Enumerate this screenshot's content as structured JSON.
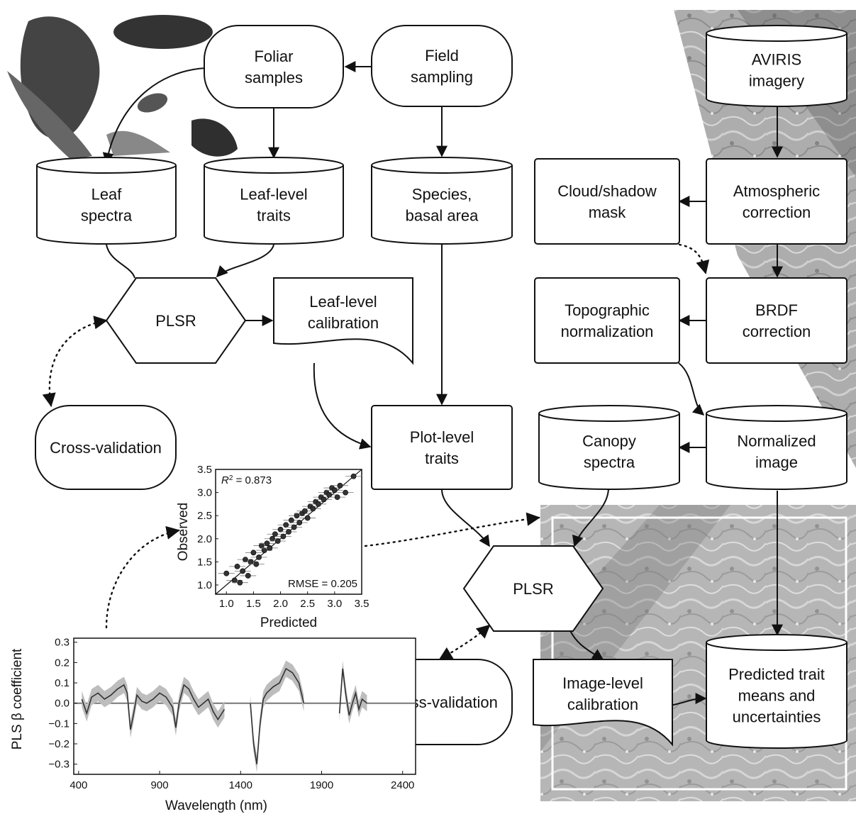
{
  "nodes": {
    "foliar_samples": [
      "Foliar",
      "samples"
    ],
    "field_sampling": [
      "Field",
      "sampling"
    ],
    "aviris": [
      "AVIRIS",
      "imagery"
    ],
    "leaf_spectra": [
      "Leaf",
      "spectra"
    ],
    "leaf_traits": [
      "Leaf-level",
      "traits"
    ],
    "species": [
      "Species,",
      "basal area"
    ],
    "cloud_mask": [
      "Cloud/shadow",
      "mask"
    ],
    "atmos": [
      "Atmospheric",
      "correction"
    ],
    "plsr1": [
      "PLSR"
    ],
    "leaf_calib": [
      "Leaf-level",
      "calibration"
    ],
    "topo": [
      "Topographic",
      "normalization"
    ],
    "brdf": [
      "BRDF",
      "correction"
    ],
    "cv1": [
      "Cross-validation"
    ],
    "plot_traits": [
      "Plot-level",
      "traits"
    ],
    "canopy": [
      "Canopy",
      "spectra"
    ],
    "norm_image": [
      "Normalized",
      "image"
    ],
    "plsr2": [
      "PLSR"
    ],
    "cv2": [
      "Cross-validation"
    ],
    "image_calib": [
      "Image-level",
      "calibration"
    ],
    "predicted": [
      "Predicted trait",
      "means and",
      "uncertainties"
    ]
  },
  "scatter_inset": {
    "xlabel": "Predicted",
    "ylabel": "Observed",
    "r2_label": "R",
    "r2_sup": "2",
    "r2_value": " = 0.873",
    "rmse_text": "RMSE = 0.205",
    "x_ticks": [
      "1.0",
      "1.5",
      "2.0",
      "2.5",
      "3.0",
      "3.5"
    ],
    "y_ticks": [
      "1.0",
      "1.5",
      "2.0",
      "2.5",
      "3.0",
      "3.5"
    ]
  },
  "coef_inset": {
    "xlabel": "Wavelength (nm)",
    "ylabel": "PLS β coefficient",
    "x_ticks": [
      "400",
      "900",
      "1400",
      "1900",
      "2400"
    ],
    "y_ticks": [
      "0.3",
      "0.2",
      "0.1",
      "0.0",
      "−0.1",
      "−0.2",
      "−0.3"
    ]
  },
  "chart_data": [
    {
      "type": "scatter",
      "xlabel": "Predicted",
      "ylabel": "Observed",
      "xlim": [
        0.8,
        3.5
      ],
      "ylim": [
        0.8,
        3.5
      ],
      "annotations": [
        "R² = 0.873",
        "RMSE = 0.205"
      ],
      "fit_line": [
        [
          0.8,
          0.8
        ],
        [
          3.5,
          3.5
        ]
      ],
      "x": [
        1.0,
        1.15,
        1.2,
        1.25,
        1.3,
        1.35,
        1.4,
        1.45,
        1.5,
        1.55,
        1.6,
        1.65,
        1.7,
        1.75,
        1.8,
        1.85,
        1.9,
        1.95,
        2.0,
        2.05,
        2.1,
        2.15,
        2.2,
        2.25,
        2.3,
        2.35,
        2.4,
        2.45,
        2.5,
        2.55,
        2.6,
        2.65,
        2.7,
        2.75,
        2.8,
        2.85,
        2.9,
        2.95,
        3.0,
        3.05,
        3.1,
        3.2,
        3.35
      ],
      "y": [
        1.25,
        1.1,
        1.4,
        1.05,
        1.3,
        1.55,
        1.2,
        1.5,
        1.7,
        1.45,
        1.6,
        1.85,
        1.75,
        1.9,
        1.8,
        2.0,
        2.1,
        1.95,
        2.2,
        2.05,
        2.3,
        2.15,
        2.4,
        2.25,
        2.5,
        2.35,
        2.55,
        2.6,
        2.45,
        2.7,
        2.65,
        2.8,
        2.75,
        2.9,
        2.85,
        3.0,
        2.95,
        3.1,
        3.05,
        2.9,
        3.15,
        3.0,
        3.35
      ]
    },
    {
      "type": "line",
      "xlabel": "Wavelength (nm)",
      "ylabel": "PLS β coefficient",
      "xlim": [
        370,
        2480
      ],
      "ylim": [
        -0.35,
        0.32
      ],
      "segments": [
        {
          "x": [
            420,
            450,
            480,
            520,
            560,
            600,
            640,
            680,
            700,
            720,
            740,
            760,
            790,
            820,
            860,
            900,
            940,
            980,
            1000,
            1020,
            1050,
            1080,
            1110,
            1140,
            1170,
            1200,
            1230,
            1260,
            1300
          ],
          "y": [
            0.02,
            -0.05,
            0.03,
            0.05,
            0.02,
            0.04,
            0.07,
            0.09,
            0.05,
            -0.13,
            -0.05,
            0.04,
            0.01,
            0.0,
            0.02,
            0.05,
            0.03,
            -0.02,
            -0.12,
            0.0,
            0.09,
            0.07,
            0.02,
            -0.02,
            0.0,
            0.02,
            -0.04,
            -0.08,
            -0.03
          ]
        },
        {
          "x": [
            1460,
            1480,
            1500,
            1520,
            1540,
            1560,
            1600,
            1640,
            1680,
            1720,
            1760,
            1790
          ],
          "y": [
            0.0,
            -0.2,
            -0.3,
            -0.1,
            0.02,
            0.05,
            0.08,
            0.1,
            0.17,
            0.15,
            0.1,
            0.0
          ]
        },
        {
          "x": [
            2010,
            2030,
            2050,
            2070,
            2090,
            2110,
            2130,
            2150,
            2180
          ],
          "y": [
            -0.05,
            0.17,
            0.04,
            -0.06,
            0.0,
            0.05,
            -0.03,
            0.02,
            0.0
          ]
        }
      ]
    }
  ]
}
